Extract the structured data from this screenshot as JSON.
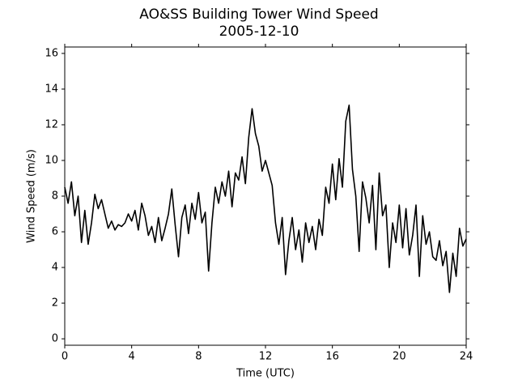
{
  "chart_data": {
    "type": "line",
    "title": "AO&SS Building Tower Wind Speed",
    "subtitle": "2005-12-10",
    "x_label": "Time (UTC)",
    "y_label": "Wind Speed (m/s)",
    "color": "#000000",
    "xlim": [
      0,
      24
    ],
    "xticks": [
      0,
      4,
      8,
      12,
      16,
      20,
      24
    ],
    "ylim": [
      -0.36,
      16.36
    ],
    "yticks": [
      0,
      2,
      4,
      6,
      8,
      10,
      12,
      14,
      16
    ],
    "x": [
      0,
      0.2,
      0.4,
      0.6,
      0.8,
      1,
      1.2,
      1.4,
      1.6,
      1.8,
      2,
      2.2,
      2.4,
      2.6,
      2.8,
      3,
      3.2,
      3.4,
      3.6,
      3.8,
      4,
      4.2,
      4.4,
      4.6,
      4.8,
      5,
      5.2,
      5.4,
      5.6,
      5.8,
      6,
      6.2,
      6.4,
      6.6,
      6.8,
      7,
      7.2,
      7.4,
      7.6,
      7.8,
      8,
      8.2,
      8.4,
      8.6,
      8.8,
      9,
      9.2,
      9.4,
      9.6,
      9.8,
      10,
      10.2,
      10.4,
      10.6,
      10.8,
      11,
      11.2,
      11.4,
      11.6,
      11.8,
      12,
      12.2,
      12.4,
      12.6,
      12.8,
      13,
      13.2,
      13.4,
      13.6,
      13.8,
      14,
      14.2,
      14.4,
      14.6,
      14.8,
      15,
      15.2,
      15.4,
      15.6,
      15.8,
      16,
      16.2,
      16.4,
      16.6,
      16.8,
      17,
      17.2,
      17.4,
      17.6,
      17.8,
      18,
      18.2,
      18.4,
      18.6,
      18.8,
      19,
      19.2,
      19.4,
      19.6,
      19.8,
      20,
      20.2,
      20.4,
      20.6,
      20.8,
      21,
      21.2,
      21.4,
      21.6,
      21.8,
      22,
      22.2,
      22.4,
      22.6,
      22.8,
      23,
      23.2,
      23.4,
      23.6,
      23.8,
      24
    ],
    "values": [
      8.5,
      7.6,
      8.8,
      6.9,
      8.0,
      5.4,
      7.2,
      5.3,
      6.5,
      8.1,
      7.3,
      7.8,
      7.0,
      6.2,
      6.6,
      6.1,
      6.4,
      6.3,
      6.5,
      7.0,
      6.6,
      7.2,
      6.1,
      7.6,
      6.9,
      5.8,
      6.3,
      5.4,
      6.8,
      5.5,
      6.2,
      7.0,
      8.4,
      6.4,
      4.6,
      6.8,
      7.5,
      5.9,
      7.6,
      6.7,
      8.2,
      6.5,
      7.1,
      3.8,
      6.5,
      8.5,
      7.6,
      8.8,
      8.0,
      9.4,
      7.4,
      9.3,
      8.9,
      10.2,
      8.7,
      11.3,
      12.9,
      11.5,
      10.8,
      9.4,
      10.0,
      9.3,
      8.6,
      6.5,
      5.3,
      6.8,
      3.6,
      5.5,
      6.8,
      5.0,
      6.1,
      4.3,
      6.5,
      5.4,
      6.3,
      5.0,
      6.7,
      5.8,
      8.5,
      7.6,
      9.8,
      7.8,
      10.1,
      8.5,
      12.2,
      13.1,
      9.5,
      8.0,
      4.9,
      8.8,
      7.9,
      6.5,
      8.6,
      5.0,
      9.3,
      6.9,
      7.5,
      4.0,
      6.5,
      5.4,
      7.5,
      5.1,
      7.3,
      4.7,
      5.8,
      7.5,
      3.5,
      6.9,
      5.3,
      6.0,
      4.6,
      4.4,
      5.5,
      4.1,
      4.9,
      2.6,
      4.8,
      3.5,
      6.2,
      5.2,
      5.6
    ]
  }
}
